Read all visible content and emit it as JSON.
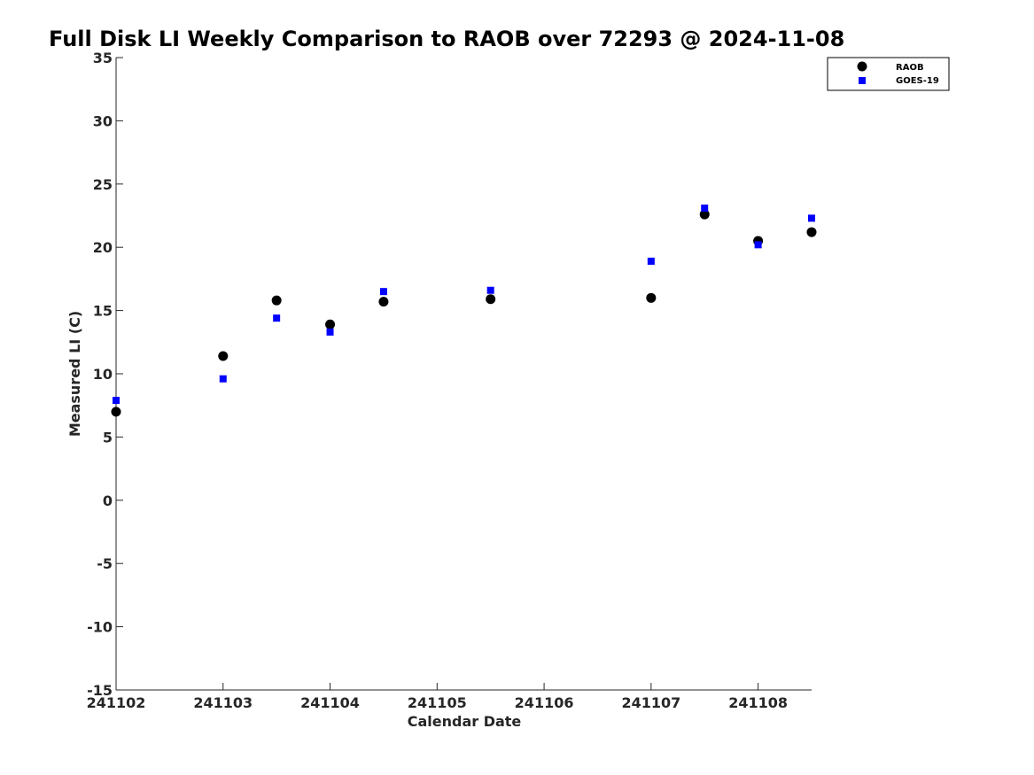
{
  "chart_data": {
    "type": "scatter",
    "title": "Full Disk LI Weekly Comparison to RAOB over 72293 @ 2024-11-08",
    "xlabel": "Calendar Date",
    "ylabel": "Measured LI (C)",
    "xlim": [
      241102,
      241108.5
    ],
    "ylim": [
      -15,
      35
    ],
    "x_ticks": [
      241102,
      241103,
      241104,
      241105,
      241106,
      241107,
      241108
    ],
    "x_tick_labels": [
      "241102",
      "241103",
      "241104",
      "241105",
      "241106",
      "241107",
      "241108"
    ],
    "y_ticks": [
      -15,
      -10,
      -5,
      0,
      5,
      10,
      15,
      20,
      25,
      30,
      35
    ],
    "y_tick_labels": [
      "-15",
      "-10",
      "-5",
      "0",
      "5",
      "10",
      "15",
      "20",
      "25",
      "30",
      "35"
    ],
    "grid": false,
    "legend_position": "top-right",
    "series": [
      {
        "name": "RAOB",
        "marker": "circle",
        "color": "#000000",
        "x": [
          241102,
          241103,
          241103.5,
          241104,
          241104.5,
          241105.5,
          241107,
          241107.5,
          241108,
          241108.5
        ],
        "y": [
          7.0,
          11.4,
          15.8,
          13.9,
          15.7,
          15.9,
          16.0,
          22.6,
          20.5,
          21.2
        ]
      },
      {
        "name": "GOES-19",
        "marker": "square",
        "color": "#0000ff",
        "x": [
          241102,
          241103,
          241103.5,
          241104,
          241104.5,
          241105.5,
          241107,
          241107.5,
          241108,
          241108.5
        ],
        "y": [
          7.9,
          9.6,
          14.4,
          13.3,
          16.5,
          16.6,
          18.9,
          23.1,
          20.2,
          22.3
        ]
      }
    ]
  }
}
